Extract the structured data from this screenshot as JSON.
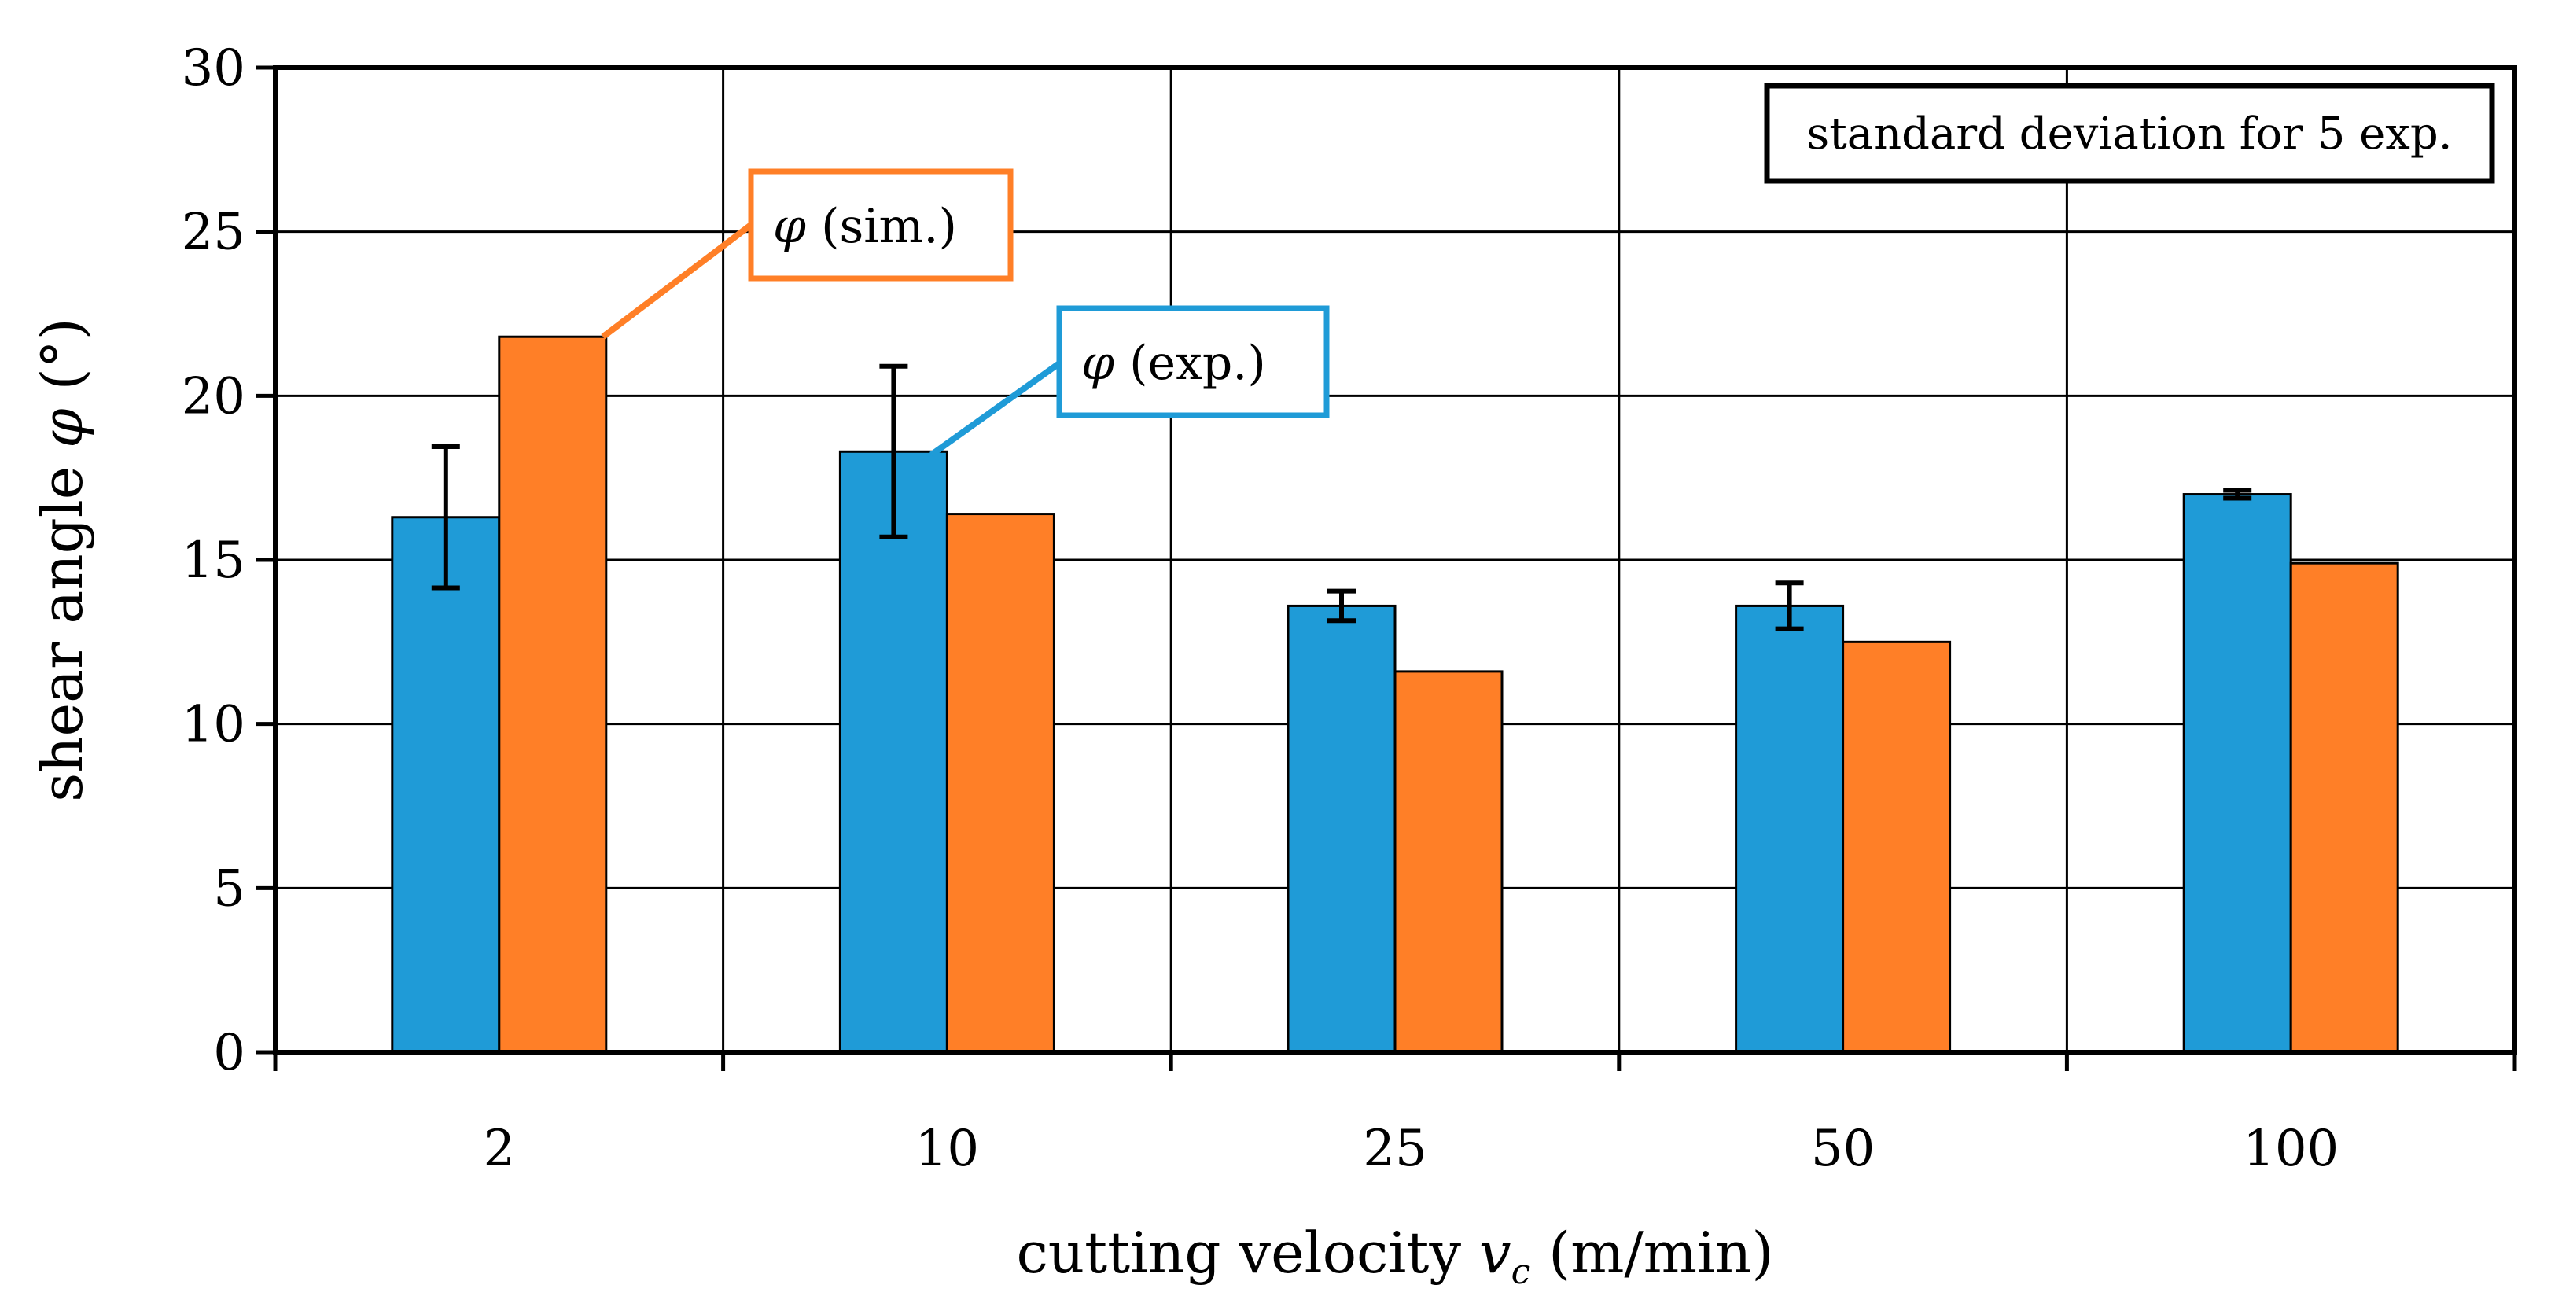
{
  "chart_data": {
    "type": "bar",
    "title": "",
    "xlabel": "cutting velocity",
    "xlabel_symbol": "v",
    "xlabel_subscript": "c",
    "xlabel_unit": "(m/min)",
    "ylabel": "shear angle",
    "ylabel_symbol": "φ",
    "ylabel_unit": "(°)",
    "ylim": [
      0,
      30
    ],
    "yticks": [
      0,
      5,
      10,
      15,
      20,
      25,
      30
    ],
    "grid": true,
    "categories": [
      "2",
      "10",
      "25",
      "50",
      "100"
    ],
    "series": [
      {
        "name": "φ (exp.)",
        "symbol": "φ",
        "label": "(exp.)",
        "color": "#1F9BD7",
        "values": [
          16.3,
          18.3,
          13.6,
          13.6,
          17.0
        ],
        "error": [
          2.15,
          2.6,
          0.45,
          0.7,
          0.12
        ]
      },
      {
        "name": "φ (sim.)",
        "symbol": "φ",
        "label": "(sim.)",
        "color": "#FF7F27",
        "values": [
          21.8,
          16.4,
          11.6,
          12.5,
          14.9
        ]
      }
    ],
    "note": "standard deviation for 5 exp."
  }
}
